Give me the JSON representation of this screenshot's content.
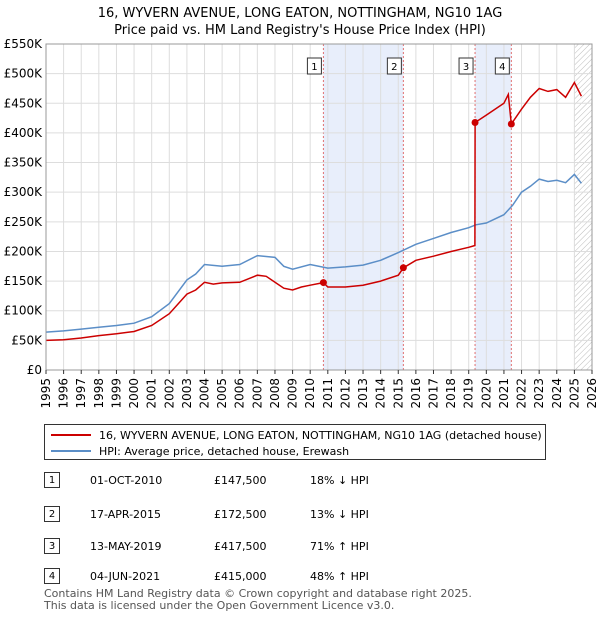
{
  "chart_data": {
    "type": "line",
    "title": "16, WYVERN AVENUE, LONG EATON, NOTTINGHAM, NG10 1AG",
    "subtitle": "Price paid vs. HM Land Registry's House Price Index (HPI)",
    "xlabel": "",
    "ylabel": "",
    "xlim": [
      1995,
      2026
    ],
    "ylim": [
      0,
      550000
    ],
    "x_ticks": [
      "1995",
      "1996",
      "1997",
      "1998",
      "1999",
      "2000",
      "2001",
      "2002",
      "2003",
      "2004",
      "2005",
      "2006",
      "2007",
      "2008",
      "2009",
      "2010",
      "2011",
      "2012",
      "2013",
      "2014",
      "2015",
      "2016",
      "2017",
      "2018",
      "2019",
      "2020",
      "2021",
      "2022",
      "2023",
      "2024",
      "2025",
      "2026"
    ],
    "y_ticks": [
      {
        "value": 0,
        "label": "£0"
      },
      {
        "value": 50000,
        "label": "£50K"
      },
      {
        "value": 100000,
        "label": "£100K"
      },
      {
        "value": 150000,
        "label": "£150K"
      },
      {
        "value": 200000,
        "label": "£200K"
      },
      {
        "value": 250000,
        "label": "£250K"
      },
      {
        "value": 300000,
        "label": "£300K"
      },
      {
        "value": 350000,
        "label": "£350K"
      },
      {
        "value": 400000,
        "label": "£400K"
      },
      {
        "value": 450000,
        "label": "£450K"
      },
      {
        "value": 500000,
        "label": "£500K"
      },
      {
        "value": 550000,
        "label": "£550K"
      }
    ],
    "shaded_ranges": [
      [
        2010.75,
        2015.29
      ],
      [
        2019.36,
        2021.42
      ]
    ],
    "future_hatch_from": 2025.0,
    "series": [
      {
        "name": "16, WYVERN AVENUE, LONG EATON, NOTTINGHAM, NG10 1AG (detached house)",
        "color": "#cc0000",
        "x": [
          1995,
          1996,
          1997,
          1998,
          1999,
          2000,
          2001,
          2002,
          2003,
          2003.5,
          2004,
          2004.5,
          2005,
          2006,
          2007,
          2007.5,
          2008,
          2008.5,
          2009,
          2009.5,
          2010,
          2010.75,
          2011,
          2012,
          2013,
          2014,
          2015,
          2015.29,
          2016,
          2017,
          2018,
          2019,
          2019.35,
          2019.36,
          2020,
          2021,
          2021.25,
          2021.42,
          2022,
          2022.5,
          2023,
          2023.5,
          2024,
          2024.5,
          2025,
          2025.4
        ],
        "y": [
          50000,
          51000,
          54000,
          58000,
          61000,
          65000,
          75000,
          95000,
          128000,
          135000,
          148000,
          145000,
          147000,
          148000,
          160000,
          158000,
          148000,
          138000,
          135000,
          140000,
          143000,
          147500,
          140000,
          140000,
          143000,
          150000,
          160000,
          172500,
          185000,
          192000,
          200000,
          207000,
          210000,
          417500,
          430000,
          450000,
          465000,
          415000,
          440000,
          460000,
          475000,
          470000,
          473000,
          460000,
          485000,
          462000
        ]
      },
      {
        "name": "HPI: Average price, detached house, Erewash",
        "color": "#5b8ec7",
        "x": [
          1995,
          1996,
          1997,
          1998,
          1999,
          2000,
          2001,
          2002,
          2003,
          2003.5,
          2004,
          2005,
          2006,
          2007,
          2008,
          2008.5,
          2009,
          2010,
          2011,
          2012,
          2013,
          2014,
          2015,
          2016,
          2017,
          2018,
          2019,
          2019.4,
          2020,
          2021,
          2021.5,
          2022,
          2022.5,
          2023,
          2023.5,
          2024,
          2024.5,
          2025,
          2025.4
        ],
        "y": [
          64000,
          66000,
          69000,
          72000,
          75000,
          79000,
          90000,
          112000,
          152000,
          162000,
          178000,
          175000,
          178000,
          193000,
          190000,
          175000,
          170000,
          178000,
          172000,
          174000,
          177000,
          185000,
          198000,
          212000,
          222000,
          232000,
          240000,
          245000,
          248000,
          262000,
          278000,
          300000,
          310000,
          322000,
          318000,
          320000,
          316000,
          330000,
          315000
        ]
      }
    ],
    "sales": [
      {
        "label": "1",
        "x": 2010.75,
        "y": 147500
      },
      {
        "label": "2",
        "x": 2015.29,
        "y": 172500
      },
      {
        "label": "3",
        "x": 2019.36,
        "y": 417500
      },
      {
        "label": "4",
        "x": 2021.42,
        "y": 415000
      }
    ]
  },
  "legend": {
    "property": "16, WYVERN AVENUE, LONG EATON, NOTTINGHAM, NG10 1AG (detached house)",
    "hpi": "HPI: Average price, detached house, Erewash"
  },
  "transactions": [
    {
      "num": "1",
      "date": "01-OCT-2010",
      "price": "£147,500",
      "hpi": "18% ↓ HPI"
    },
    {
      "num": "2",
      "date": "17-APR-2015",
      "price": "£172,500",
      "hpi": "13% ↓ HPI"
    },
    {
      "num": "3",
      "date": "13-MAY-2019",
      "price": "£417,500",
      "hpi": "71% ↑ HPI"
    },
    {
      "num": "4",
      "date": "04-JUN-2021",
      "price": "£415,000",
      "hpi": "48% ↑ HPI"
    }
  ],
  "footer": {
    "line1": "Contains HM Land Registry data © Crown copyright and database right 2025.",
    "line2": "This data is licensed under the Open Government Licence v3.0."
  }
}
